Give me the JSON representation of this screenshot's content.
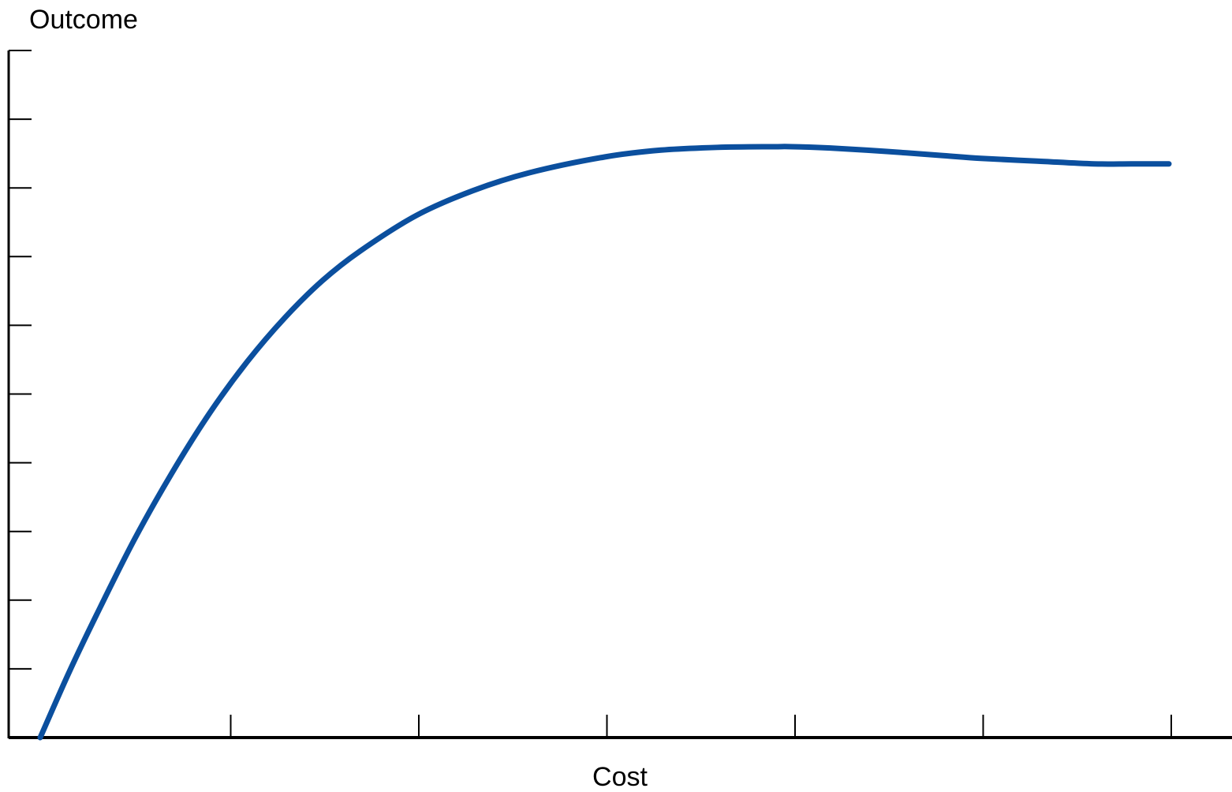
{
  "chart_data": {
    "type": "line",
    "xlabel": "Cost",
    "ylabel": "Outcome",
    "xlim": [
      0,
      6
    ],
    "ylim": [
      0,
      10
    ],
    "x_ticks": [
      1,
      2,
      3,
      4,
      5,
      6
    ],
    "y_ticks": [
      1,
      2,
      3,
      4,
      5,
      6,
      7,
      8,
      9,
      10
    ],
    "tick_labels_shown": false,
    "grid": false,
    "legend": "none",
    "series": [
      {
        "color": "#0b4f9e",
        "x": [
          0.0,
          0.15,
          0.3,
          0.5,
          0.7,
          0.9,
          1.1,
          1.3,
          1.5,
          1.7,
          2.0,
          2.3,
          2.6,
          3.0,
          3.3,
          3.6,
          3.9,
          4.0,
          4.2,
          4.5,
          4.8,
          5.0,
          5.3,
          5.6,
          5.8,
          6.0
        ],
        "values": [
          0.0,
          0.93,
          1.79,
          2.88,
          3.85,
          4.72,
          5.47,
          6.11,
          6.65,
          7.08,
          7.6,
          7.96,
          8.22,
          8.45,
          8.55,
          8.59,
          8.6,
          8.6,
          8.58,
          8.53,
          8.47,
          8.43,
          8.39,
          8.35,
          8.35,
          8.35
        ]
      }
    ]
  }
}
